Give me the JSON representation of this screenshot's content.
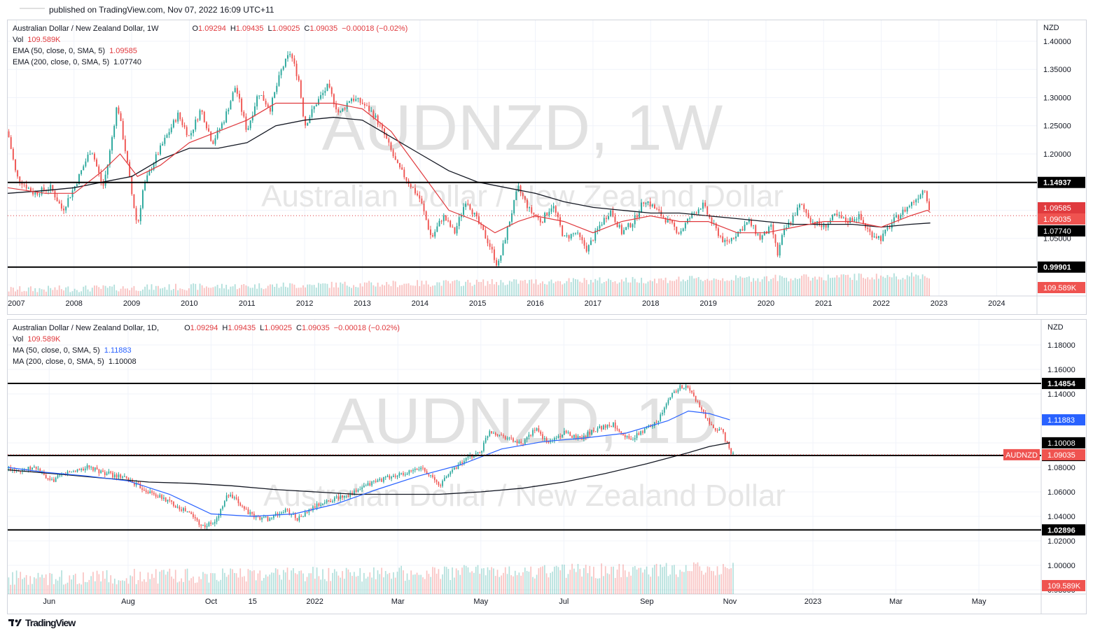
{
  "header": {
    "published": "published on TradingView.com, Nov 07, 2022 16:09 UTC+11"
  },
  "footer": {
    "brand": "TradingView",
    "logo_icon": "tradingview-logo-icon"
  },
  "colors": {
    "up": "#26a69a",
    "down": "#ef5350",
    "ema50": "#e03a3e",
    "ma50_daily": "#2962ff",
    "ema200": "#131722",
    "level": "#000000",
    "price_line": "#e03a3e"
  },
  "weekly": {
    "legend": {
      "symbol": "Australian Dollar / New Zealand Dollar, 1W",
      "ohlc": {
        "o_label": "O",
        "o": "1.09294",
        "h_label": "H",
        "h": "1.09435",
        "l_label": "L",
        "l": "1.09025",
        "c_label": "C",
        "c": "1.09035",
        "chg": "−0.00018 (−0.02%)"
      },
      "vol": {
        "label": "Vol",
        "value": "109.589K"
      },
      "ind1": {
        "label": "EMA (50, close, 0, SMA, 5)",
        "value": "1.09585"
      },
      "ind2": {
        "label": "EMA (200, close, 0, SMA, 5)",
        "value": "1.07740"
      }
    },
    "watermark": {
      "ticker": "AUDNZD, 1W",
      "name": "Australian Dollar / New Zealand Dollar"
    },
    "currency": "NZD"
  },
  "daily": {
    "legend": {
      "symbol": "Australian Dollar / New Zealand Dollar, 1D,",
      "ohlc": {
        "o_label": "O",
        "o": "1.09294",
        "h_label": "H",
        "h": "1.09435",
        "l_label": "L",
        "l": "1.09025",
        "c_label": "C",
        "c": "1.09035",
        "chg": "−0.00018 (−0.02%)"
      },
      "vol": {
        "label": "Vol",
        "value": "109.589K"
      },
      "ind1": {
        "label": "MA (50, close, 0, SMA, 5)",
        "value": "1.11883"
      },
      "ind2": {
        "label": "MA (200, close, 0, SMA, 5)",
        "value": "1.10008"
      }
    },
    "watermark": {
      "ticker": "AUDNZD, 1D",
      "name": "Australian Dollar / New Zealand Dollar"
    },
    "currency": "NZD",
    "symbol_badge": "AUDNZD"
  },
  "chart_data": [
    {
      "type": "candlestick",
      "title": "Australian Dollar / New Zealand Dollar, 1W",
      "timeframe": "1W",
      "x_ticks": [
        "2007",
        "2008",
        "2009",
        "2010",
        "2011",
        "2012",
        "2013",
        "2014",
        "2015",
        "2016",
        "2017",
        "2018",
        "2019",
        "2020",
        "2021",
        "2022",
        "2023",
        "2024"
      ],
      "x_range": [
        2006.85,
        2024.7
      ],
      "y_ticks": [
        1.05,
        1.1,
        1.15,
        1.2,
        1.25,
        1.3,
        1.35,
        1.4
      ],
      "y_tick_labels": [
        "1.05000",
        "1.10000",
        "1.15000",
        "1.20000",
        "1.25000",
        "1.30000",
        "1.35000",
        "1.40000"
      ],
      "ylim": [
        0.99,
        1.4
      ],
      "horizontal_levels": [
        {
          "value": 1.14937,
          "label": "1.14937"
        },
        {
          "value": 0.99901,
          "label": "0.99901"
        }
      ],
      "price_labels": [
        {
          "value": 1.09585,
          "label": "1.09585",
          "kind": "ema50"
        },
        {
          "value": 1.09035,
          "label": "1.09035",
          "kind": "last"
        },
        {
          "value": 1.0774,
          "label": "1.07740",
          "kind": "ema200"
        }
      ],
      "volume_label": "109.589K",
      "price_path": [
        [
          2006.85,
          1.24
        ],
        [
          2007.0,
          1.16
        ],
        [
          2007.3,
          1.13
        ],
        [
          2007.6,
          1.14
        ],
        [
          2007.8,
          1.1
        ],
        [
          2008.0,
          1.14
        ],
        [
          2008.3,
          1.21
        ],
        [
          2008.5,
          1.14
        ],
        [
          2008.6,
          1.19
        ],
        [
          2008.75,
          1.29
        ],
        [
          2008.9,
          1.2
        ],
        [
          2009.0,
          1.13
        ],
        [
          2009.1,
          1.07
        ],
        [
          2009.2,
          1.14
        ],
        [
          2009.4,
          1.19
        ],
        [
          2009.6,
          1.23
        ],
        [
          2009.8,
          1.27
        ],
        [
          2010.0,
          1.23
        ],
        [
          2010.2,
          1.28
        ],
        [
          2010.4,
          1.22
        ],
        [
          2010.6,
          1.26
        ],
        [
          2010.8,
          1.32
        ],
        [
          2011.0,
          1.24
        ],
        [
          2011.2,
          1.31
        ],
        [
          2011.4,
          1.28
        ],
        [
          2011.6,
          1.35
        ],
        [
          2011.75,
          1.38
        ],
        [
          2011.9,
          1.33
        ],
        [
          2012.0,
          1.25
        ],
        [
          2012.2,
          1.29
        ],
        [
          2012.4,
          1.32
        ],
        [
          2012.6,
          1.27
        ],
        [
          2012.8,
          1.3
        ],
        [
          2013.0,
          1.29
        ],
        [
          2013.2,
          1.27
        ],
        [
          2013.4,
          1.23
        ],
        [
          2013.6,
          1.18
        ],
        [
          2013.8,
          1.15
        ],
        [
          2014.0,
          1.12
        ],
        [
          2014.2,
          1.05
        ],
        [
          2014.4,
          1.09
        ],
        [
          2014.6,
          1.06
        ],
        [
          2014.8,
          1.12
        ],
        [
          2015.0,
          1.08
        ],
        [
          2015.2,
          1.04
        ],
        [
          2015.35,
          1.0
        ],
        [
          2015.5,
          1.06
        ],
        [
          2015.7,
          1.14
        ],
        [
          2015.9,
          1.1
        ],
        [
          2016.1,
          1.08
        ],
        [
          2016.3,
          1.11
        ],
        [
          2016.5,
          1.05
        ],
        [
          2016.7,
          1.06
        ],
        [
          2016.9,
          1.03
        ],
        [
          2017.1,
          1.07
        ],
        [
          2017.3,
          1.1
        ],
        [
          2017.5,
          1.06
        ],
        [
          2017.7,
          1.08
        ],
        [
          2017.9,
          1.12
        ],
        [
          2018.1,
          1.1
        ],
        [
          2018.3,
          1.08
        ],
        [
          2018.5,
          1.06
        ],
        [
          2018.7,
          1.09
        ],
        [
          2018.9,
          1.11
        ],
        [
          2019.1,
          1.07
        ],
        [
          2019.3,
          1.04
        ],
        [
          2019.5,
          1.06
        ],
        [
          2019.7,
          1.08
        ],
        [
          2019.9,
          1.05
        ],
        [
          2020.1,
          1.07
        ],
        [
          2020.2,
          1.02
        ],
        [
          2020.3,
          1.06
        ],
        [
          2020.6,
          1.11
        ],
        [
          2020.8,
          1.08
        ],
        [
          2021.0,
          1.07
        ],
        [
          2021.2,
          1.09
        ],
        [
          2021.4,
          1.08
        ],
        [
          2021.6,
          1.09
        ],
        [
          2021.8,
          1.06
        ],
        [
          2022.0,
          1.05
        ],
        [
          2022.2,
          1.08
        ],
        [
          2022.4,
          1.1
        ],
        [
          2022.6,
          1.12
        ],
        [
          2022.75,
          1.14
        ],
        [
          2022.82,
          1.11
        ],
        [
          2022.85,
          1.09
        ]
      ],
      "ema50_path": [
        [
          2006.85,
          1.14
        ],
        [
          2007.5,
          1.13
        ],
        [
          2008.0,
          1.13
        ],
        [
          2008.5,
          1.17
        ],
        [
          2008.8,
          1.2
        ],
        [
          2009.1,
          1.16
        ],
        [
          2009.5,
          1.18
        ],
        [
          2010.0,
          1.22
        ],
        [
          2010.5,
          1.24
        ],
        [
          2011.0,
          1.26
        ],
        [
          2011.5,
          1.29
        ],
        [
          2012.0,
          1.29
        ],
        [
          2012.5,
          1.29
        ],
        [
          2013.0,
          1.28
        ],
        [
          2013.5,
          1.24
        ],
        [
          2014.0,
          1.17
        ],
        [
          2014.5,
          1.1
        ],
        [
          2015.0,
          1.08
        ],
        [
          2015.3,
          1.06
        ],
        [
          2015.7,
          1.08
        ],
        [
          2016.0,
          1.09
        ],
        [
          2016.5,
          1.08
        ],
        [
          2017.0,
          1.06
        ],
        [
          2017.5,
          1.08
        ],
        [
          2018.0,
          1.09
        ],
        [
          2018.5,
          1.08
        ],
        [
          2019.0,
          1.08
        ],
        [
          2019.5,
          1.06
        ],
        [
          2020.0,
          1.06
        ],
        [
          2020.5,
          1.07
        ],
        [
          2021.0,
          1.08
        ],
        [
          2021.5,
          1.08
        ],
        [
          2022.0,
          1.07
        ],
        [
          2022.5,
          1.09
        ],
        [
          2022.8,
          1.1
        ],
        [
          2022.85,
          1.096
        ]
      ],
      "ema200_path": [
        [
          2006.85,
          1.13
        ],
        [
          2007.5,
          1.135
        ],
        [
          2008.0,
          1.14
        ],
        [
          2008.5,
          1.15
        ],
        [
          2009.0,
          1.16
        ],
        [
          2009.5,
          1.19
        ],
        [
          2010.0,
          1.21
        ],
        [
          2010.5,
          1.21
        ],
        [
          2011.0,
          1.22
        ],
        [
          2011.5,
          1.25
        ],
        [
          2012.0,
          1.26
        ],
        [
          2012.5,
          1.265
        ],
        [
          2013.0,
          1.26
        ],
        [
          2013.5,
          1.23
        ],
        [
          2014.0,
          1.2
        ],
        [
          2014.5,
          1.17
        ],
        [
          2015.0,
          1.15
        ],
        [
          2015.5,
          1.14
        ],
        [
          2016.0,
          1.13
        ],
        [
          2016.5,
          1.115
        ],
        [
          2017.0,
          1.105
        ],
        [
          2017.5,
          1.1
        ],
        [
          2018.0,
          1.095
        ],
        [
          2018.5,
          1.095
        ],
        [
          2019.0,
          1.09
        ],
        [
          2019.5,
          1.085
        ],
        [
          2020.0,
          1.08
        ],
        [
          2020.5,
          1.075
        ],
        [
          2021.0,
          1.075
        ],
        [
          2021.5,
          1.075
        ],
        [
          2022.0,
          1.07
        ],
        [
          2022.5,
          1.075
        ],
        [
          2022.85,
          1.0774
        ]
      ]
    },
    {
      "type": "candlestick",
      "title": "Australian Dollar / New Zealand Dollar, 1D",
      "timeframe": "1D",
      "x_ticks": [
        "Jun",
        "Aug",
        "Oct",
        "15",
        "2022",
        "Mar",
        "May",
        "Jul",
        "Sep",
        "Nov",
        "2023",
        "Mar",
        "May"
      ],
      "x_tick_months": [
        5.6,
        7.5,
        9.5,
        10.5,
        12.0,
        14.0,
        16.0,
        18.0,
        20.0,
        22.0,
        24.0,
        26.0,
        28.0
      ],
      "x_range": [
        4.6,
        29.5
      ],
      "y_ticks": [
        0.98,
        1.0,
        1.02,
        1.04,
        1.06,
        1.08,
        1.1,
        1.12,
        1.14,
        1.16,
        1.18
      ],
      "y_tick_labels": [
        "0.98000",
        "1.00000",
        "1.02000",
        "1.04000",
        "1.06000",
        "1.08000",
        "1.10000",
        "1.12000",
        "1.14000",
        "1.16000",
        "1.18000"
      ],
      "ylim": [
        0.972,
        1.188
      ],
      "horizontal_levels": [
        {
          "value": 1.14854,
          "label": "1.14854"
        },
        {
          "value": 1.08969,
          "label": "1.08969"
        },
        {
          "value": 1.02896,
          "label": "1.02896"
        }
      ],
      "price_labels": [
        {
          "value": 1.11883,
          "label": "1.11883",
          "kind": "ma50"
        },
        {
          "value": 1.10008,
          "label": "1.10008",
          "kind": "ma200"
        },
        {
          "value": 1.09035,
          "label": "1.09035",
          "kind": "last"
        }
      ],
      "volume_label": "109.589K",
      "price_path": [
        [
          4.6,
          1.079
        ],
        [
          5.0,
          1.078
        ],
        [
          5.3,
          1.08
        ],
        [
          5.6,
          1.068
        ],
        [
          6.0,
          1.075
        ],
        [
          6.5,
          1.08
        ],
        [
          7.0,
          1.075
        ],
        [
          7.5,
          1.07
        ],
        [
          8.0,
          1.06
        ],
        [
          8.5,
          1.052
        ],
        [
          9.0,
          1.042
        ],
        [
          9.3,
          1.032
        ],
        [
          9.6,
          1.035
        ],
        [
          9.9,
          1.058
        ],
        [
          10.2,
          1.05
        ],
        [
          10.5,
          1.04
        ],
        [
          10.9,
          1.038
        ],
        [
          11.3,
          1.045
        ],
        [
          11.6,
          1.038
        ],
        [
          12.0,
          1.048
        ],
        [
          12.5,
          1.055
        ],
        [
          13.0,
          1.06
        ],
        [
          13.4,
          1.068
        ],
        [
          13.8,
          1.072
        ],
        [
          14.2,
          1.075
        ],
        [
          14.6,
          1.08
        ],
        [
          15.0,
          1.065
        ],
        [
          15.3,
          1.078
        ],
        [
          15.7,
          1.088
        ],
        [
          16.0,
          1.093
        ],
        [
          16.2,
          1.11
        ],
        [
          16.6,
          1.105
        ],
        [
          17.0,
          1.098
        ],
        [
          17.3,
          1.112
        ],
        [
          17.6,
          1.1
        ],
        [
          18.0,
          1.108
        ],
        [
          18.4,
          1.104
        ],
        [
          18.8,
          1.112
        ],
        [
          19.2,
          1.115
        ],
        [
          19.6,
          1.102
        ],
        [
          20.0,
          1.112
        ],
        [
          20.3,
          1.12
        ],
        [
          20.6,
          1.14
        ],
        [
          20.8,
          1.146
        ],
        [
          21.0,
          1.145
        ],
        [
          21.3,
          1.128
        ],
        [
          21.6,
          1.11
        ],
        [
          21.8,
          1.112
        ],
        [
          21.9,
          1.102
        ],
        [
          22.0,
          1.092
        ],
        [
          22.1,
          1.0904
        ]
      ],
      "ma50_path": [
        [
          4.6,
          1.08
        ],
        [
          5.5,
          1.076
        ],
        [
          6.5,
          1.073
        ],
        [
          7.5,
          1.069
        ],
        [
          8.5,
          1.058
        ],
        [
          9.5,
          1.042
        ],
        [
          10.5,
          1.04
        ],
        [
          11.5,
          1.042
        ],
        [
          12.5,
          1.05
        ],
        [
          13.5,
          1.062
        ],
        [
          14.5,
          1.073
        ],
        [
          15.5,
          1.082
        ],
        [
          16.5,
          1.095
        ],
        [
          17.5,
          1.101
        ],
        [
          18.5,
          1.104
        ],
        [
          19.5,
          1.108
        ],
        [
          20.5,
          1.118
        ],
        [
          21.0,
          1.126
        ],
        [
          21.5,
          1.124
        ],
        [
          22.0,
          1.1188
        ]
      ],
      "ma200_path": [
        [
          4.6,
          1.078
        ],
        [
          6.0,
          1.074
        ],
        [
          7.0,
          1.071
        ],
        [
          8.0,
          1.068
        ],
        [
          9.0,
          1.067
        ],
        [
          10.0,
          1.065
        ],
        [
          11.0,
          1.062
        ],
        [
          12.0,
          1.06
        ],
        [
          13.0,
          1.058
        ],
        [
          14.0,
          1.058
        ],
        [
          15.0,
          1.058
        ],
        [
          16.0,
          1.06
        ],
        [
          17.0,
          1.063
        ],
        [
          18.0,
          1.068
        ],
        [
          19.0,
          1.075
        ],
        [
          20.0,
          1.083
        ],
        [
          21.0,
          1.092
        ],
        [
          21.5,
          1.097
        ],
        [
          22.0,
          1.1001
        ]
      ]
    }
  ]
}
